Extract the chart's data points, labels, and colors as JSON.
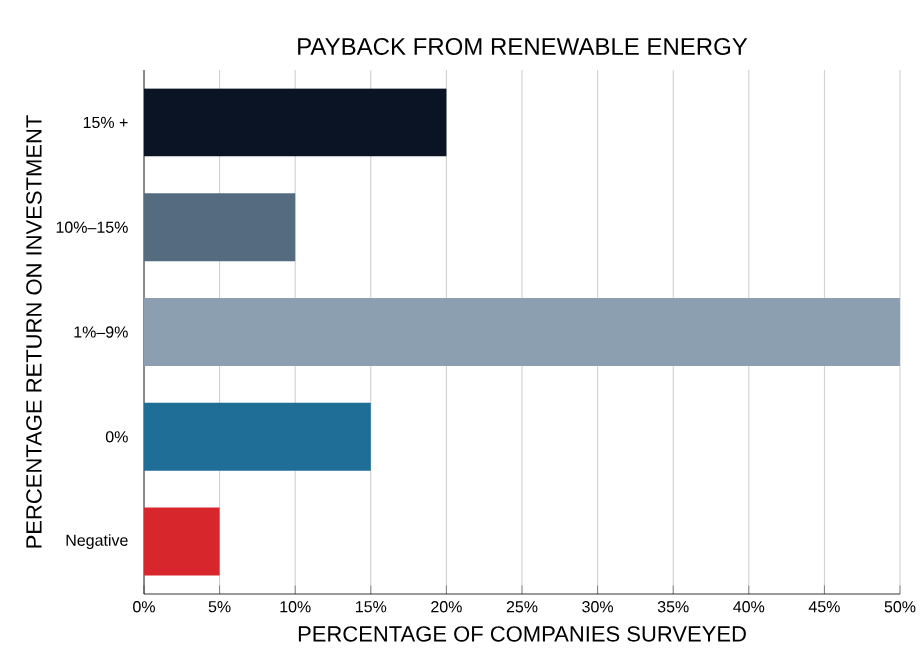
{
  "chart_data": {
    "type": "bar",
    "orientation": "horizontal",
    "title": "PAYBACK FROM RENEWABLE ENERGY",
    "xlabel": "PERCENTAGE OF COMPANIES SURVEYED",
    "ylabel": "PERCENTAGE RETURN ON INVESTMENT",
    "categories": [
      "15% +",
      "10%–15%",
      "1%–9%",
      "0%",
      "Negative"
    ],
    "values": [
      20,
      10,
      50,
      15,
      5
    ],
    "colors": [
      "#0b1424",
      "#546b80",
      "#8b9fb0",
      "#1f6e98",
      "#d8262d"
    ],
    "xlim": [
      0,
      50
    ],
    "xticks": [
      {
        "value": 0,
        "label": "0%"
      },
      {
        "value": 5,
        "label": "5%"
      },
      {
        "value": 10,
        "label": "10%"
      },
      {
        "value": 15,
        "label": "15%"
      },
      {
        "value": 20,
        "label": "20%"
      },
      {
        "value": 25,
        "label": "25%"
      },
      {
        "value": 30,
        "label": "30%"
      },
      {
        "value": 35,
        "label": "35%"
      },
      {
        "value": 40,
        "label": "40%"
      },
      {
        "value": 45,
        "label": "45%"
      },
      {
        "value": 50,
        "label": "50%"
      }
    ],
    "grid": "x"
  }
}
